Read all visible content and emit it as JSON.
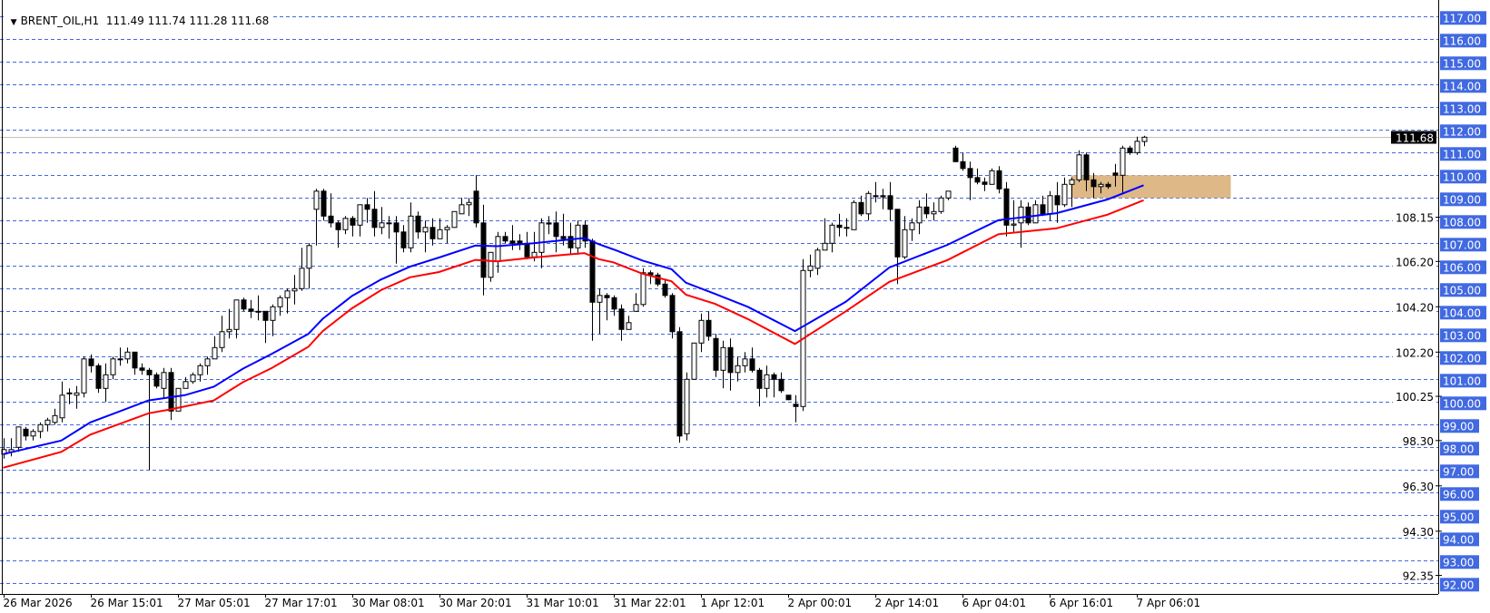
{
  "header": {
    "menu_icon": "triangle-down-icon",
    "symbol": "BRENT_OIL,H1",
    "ohlc": "111.49 111.74 111.28 111.68"
  },
  "chart_data": {
    "type": "candlestick",
    "symbol": "BRENT_OIL",
    "timeframe": "H1",
    "ylim": [
      92,
      117
    ],
    "grid": true,
    "grid_style": "dashed",
    "colors": {
      "grid": "#4169e1",
      "axis_label_bg": "#4169e1",
      "bull_body": "#ffffff",
      "bear_body": "#000000",
      "ma_fast": "#0000ff",
      "ma_slow": "#ff0000",
      "zone": "#deb887",
      "price_line": "#c0c0c0",
      "price_label_bg": "#000000"
    },
    "y_ticks": [
      "117.00",
      "116.00",
      "115.00",
      "114.00",
      "113.00",
      "112.00",
      "111.00",
      "110.00",
      "109.00",
      "108.00",
      "107.00",
      "106.00",
      "105.00",
      "104.00",
      "103.00",
      "102.00",
      "101.00",
      "100.00",
      "99.00",
      "98.00",
      "97.00",
      "96.00",
      "95.00",
      "94.00",
      "93.00",
      "92.00"
    ],
    "y_minor_ticks": [
      "108.15",
      "106.20",
      "104.20",
      "102.20",
      "100.25",
      "98.30",
      "96.30",
      "94.30",
      "92.35"
    ],
    "x_ticks": [
      "26 Mar 2026",
      "26 Mar 15:01",
      "27 Mar 05:01",
      "27 Mar 17:01",
      "30 Mar 08:01",
      "30 Mar 20:01",
      "31 Mar 10:01",
      "31 Mar 22:01",
      "1 Apr 12:01",
      "2 Apr 00:01",
      "2 Apr 14:01",
      "6 Apr 04:01",
      "6 Apr 16:01",
      "7 Apr 06:01"
    ],
    "x_tick_every_bars": 12,
    "current_price": "111.68",
    "zone": {
      "low": 109,
      "high": 110,
      "start_bar": 147,
      "end_bar": 169
    },
    "candles_ohlc": [
      [
        97.7,
        98.4,
        97.5,
        97.9
      ],
      [
        97.8,
        98.4,
        97.6,
        97.9
      ],
      [
        98.0,
        98.9,
        97.8,
        98.9
      ],
      [
        98.8,
        98.9,
        98.3,
        98.5
      ],
      [
        98.5,
        98.8,
        98.3,
        98.7
      ],
      [
        98.7,
        99.1,
        98.4,
        99.0
      ],
      [
        99.0,
        99.3,
        98.7,
        99.2
      ],
      [
        99.1,
        99.7,
        99.0,
        99.4
      ],
      [
        99.3,
        100.9,
        99.1,
        100.3
      ],
      [
        100.4,
        100.6,
        99.9,
        100.4
      ],
      [
        100.3,
        100.7,
        99.7,
        100.4
      ],
      [
        100.4,
        102.0,
        100.2,
        101.9
      ],
      [
        101.9,
        102.1,
        101.3,
        101.6
      ],
      [
        101.6,
        101.7,
        100.4,
        100.6
      ],
      [
        100.6,
        101.7,
        100.0,
        101.2
      ],
      [
        101.2,
        102.0,
        101.0,
        101.9
      ],
      [
        101.9,
        102.4,
        101.6,
        101.9
      ],
      [
        101.9,
        102.4,
        101.7,
        102.2
      ],
      [
        102.2,
        102.2,
        101.2,
        101.5
      ],
      [
        101.5,
        101.7,
        101.2,
        101.4
      ],
      [
        101.4,
        101.5,
        97.0,
        101.2
      ],
      [
        101.2,
        101.3,
        100.6,
        100.7
      ],
      [
        100.6,
        101.5,
        100.2,
        101.3
      ],
      [
        101.3,
        101.5,
        99.2,
        99.6
      ],
      [
        99.6,
        100.6,
        99.6,
        100.6
      ],
      [
        100.6,
        101.1,
        100.6,
        100.9
      ],
      [
        100.9,
        101.3,
        100.8,
        101.2
      ],
      [
        101.2,
        101.7,
        100.9,
        101.6
      ],
      [
        101.6,
        102.0,
        101.2,
        101.9
      ],
      [
        101.9,
        102.9,
        101.9,
        102.4
      ],
      [
        102.4,
        103.8,
        102.2,
        103.1
      ],
      [
        103.1,
        104.1,
        102.8,
        103.2
      ],
      [
        103.2,
        104.5,
        102.8,
        104.5
      ],
      [
        104.5,
        104.6,
        104.0,
        104.1
      ],
      [
        104.1,
        104.5,
        103.7,
        104.0
      ],
      [
        104.0,
        104.7,
        103.6,
        104.0
      ],
      [
        104.0,
        104.0,
        102.6,
        103.6
      ],
      [
        103.6,
        104.3,
        102.9,
        104.2
      ],
      [
        104.2,
        104.7,
        103.8,
        104.6
      ],
      [
        104.6,
        105.0,
        103.9,
        104.9
      ],
      [
        104.9,
        105.6,
        104.3,
        105.0
      ],
      [
        105.0,
        106.8,
        104.9,
        105.9
      ],
      [
        105.9,
        107.0,
        105.0,
        106.9
      ],
      [
        108.5,
        109.4,
        106.9,
        109.3
      ],
      [
        109.3,
        109.4,
        108.0,
        108.2
      ],
      [
        108.2,
        109.2,
        107.7,
        107.9
      ],
      [
        107.9,
        108.0,
        106.8,
        107.6
      ],
      [
        107.6,
        108.2,
        107.4,
        108.1
      ],
      [
        108.1,
        108.2,
        107.3,
        107.8
      ],
      [
        107.8,
        108.7,
        107.3,
        108.7
      ],
      [
        108.7,
        109.0,
        107.9,
        108.5
      ],
      [
        108.5,
        109.3,
        107.3,
        107.7
      ],
      [
        107.7,
        108.6,
        107.4,
        107.9
      ],
      [
        107.9,
        108.2,
        107.2,
        107.9
      ],
      [
        107.9,
        108.2,
        106.1,
        107.5
      ],
      [
        107.5,
        107.8,
        106.6,
        106.8
      ],
      [
        106.8,
        108.8,
        106.6,
        108.2
      ],
      [
        108.2,
        108.4,
        107.2,
        107.5
      ],
      [
        107.5,
        108.0,
        106.6,
        107.7
      ],
      [
        107.7,
        108.1,
        106.9,
        107.2
      ],
      [
        107.2,
        108.1,
        107.2,
        107.6
      ],
      [
        107.6,
        107.8,
        107.0,
        107.7
      ],
      [
        107.7,
        108.4,
        107.7,
        108.4
      ],
      [
        108.3,
        109.0,
        108.3,
        108.7
      ],
      [
        108.7,
        109.0,
        108.2,
        108.8
      ],
      [
        109.3,
        110.0,
        107.7,
        107.9
      ],
      [
        107.9,
        108.7,
        104.7,
        105.5
      ],
      [
        105.5,
        106.6,
        105.3,
        106.6
      ],
      [
        106.2,
        107.5,
        105.7,
        107.3
      ],
      [
        107.3,
        107.5,
        107.0,
        107.1
      ],
      [
        107.1,
        107.8,
        106.7,
        107.0
      ],
      [
        107.1,
        107.4,
        106.7,
        107.0
      ],
      [
        107.0,
        107.5,
        106.3,
        106.4
      ],
      [
        106.4,
        107.5,
        106.2,
        106.6
      ],
      [
        106.6,
        108.1,
        105.9,
        107.9
      ],
      [
        107.9,
        108.2,
        107.4,
        107.85
      ],
      [
        107.9,
        108.4,
        106.6,
        107.3
      ],
      [
        107.3,
        108.3,
        106.9,
        107.2
      ],
      [
        107.3,
        107.9,
        106.5,
        106.8
      ],
      [
        106.8,
        108.0,
        106.5,
        107.8
      ],
      [
        107.8,
        108.0,
        106.8,
        107.1
      ],
      [
        107.1,
        107.2,
        102.7,
        104.4
      ],
      [
        104.4,
        105.0,
        103.0,
        104.7
      ],
      [
        104.7,
        104.8,
        103.6,
        104.6
      ],
      [
        104.6,
        104.7,
        103.8,
        104.1
      ],
      [
        104.1,
        104.3,
        102.7,
        103.2
      ],
      [
        103.2,
        103.8,
        103.2,
        103.5
      ],
      [
        104.0,
        104.8,
        104.0,
        104.3
      ],
      [
        104.3,
        105.9,
        104.2,
        105.7
      ],
      [
        105.7,
        105.8,
        105.2,
        105.6
      ],
      [
        105.6,
        105.7,
        105.1,
        105.2
      ],
      [
        105.2,
        105.4,
        104.6,
        104.7
      ],
      [
        104.7,
        104.8,
        102.8,
        103.1
      ],
      [
        103.1,
        103.3,
        98.2,
        98.5
      ],
      [
        98.6,
        101.3,
        98.3,
        101.0
      ],
      [
        101.0,
        102.6,
        101.0,
        102.6
      ],
      [
        102.6,
        103.9,
        102.2,
        103.6
      ],
      [
        103.6,
        104.0,
        102.7,
        102.9
      ],
      [
        102.8,
        103.0,
        101.1,
        101.4
      ],
      [
        101.4,
        102.7,
        100.6,
        102.4
      ],
      [
        102.4,
        102.8,
        100.5,
        101.3
      ],
      [
        101.3,
        102.0,
        100.9,
        101.6
      ],
      [
        101.6,
        102.2,
        101.3,
        101.9
      ],
      [
        101.9,
        102.4,
        101.3,
        101.4
      ],
      [
        101.4,
        101.5,
        99.8,
        100.6
      ],
      [
        100.6,
        101.6,
        100.2,
        101.2
      ],
      [
        101.2,
        101.3,
        100.2,
        101.0
      ],
      [
        101.0,
        101.3,
        100.4,
        100.5
      ],
      [
        100.3,
        100.3,
        100.1,
        100.1
      ],
      [
        99.9,
        100.3,
        99.1,
        99.8
      ],
      [
        99.8,
        106.3,
        99.6,
        105.8
      ],
      [
        105.8,
        106.5,
        105.5,
        106.0
      ],
      [
        105.9,
        106.8,
        105.6,
        106.7
      ],
      [
        106.7,
        108.1,
        106.7,
        107.0
      ],
      [
        107.0,
        107.9,
        106.6,
        107.8
      ],
      [
        107.8,
        108.3,
        107.3,
        107.7
      ],
      [
        107.7,
        108.1,
        107.3,
        107.7
      ],
      [
        107.6,
        108.9,
        107.6,
        108.8
      ],
      [
        108.8,
        109.1,
        108.2,
        108.3
      ],
      [
        108.3,
        109.3,
        108.0,
        109.2
      ],
      [
        109.1,
        109.7,
        108.8,
        109.1
      ],
      [
        109.1,
        109.4,
        108.5,
        109.05
      ],
      [
        109.1,
        109.7,
        108.0,
        108.5
      ],
      [
        108.5,
        108.5,
        105.2,
        106.4
      ],
      [
        106.4,
        108.2,
        106.3,
        107.6
      ],
      [
        107.6,
        108.1,
        107.1,
        107.9
      ],
      [
        107.9,
        108.9,
        107.4,
        108.6
      ],
      [
        108.6,
        109.2,
        108.1,
        108.3
      ],
      [
        108.3,
        108.8,
        108.0,
        108.4
      ],
      [
        108.4,
        109.1,
        108.3,
        109.0
      ],
      [
        109.0,
        109.3,
        108.9,
        109.3
      ],
      [
        111.2,
        111.3,
        110.6,
        110.6
      ],
      [
        110.6,
        111.0,
        110.2,
        110.3
      ],
      [
        110.3,
        110.6,
        108.9,
        109.9
      ],
      [
        109.9,
        110.3,
        109.6,
        109.7
      ],
      [
        109.7,
        109.9,
        109.3,
        109.6
      ],
      [
        109.6,
        110.3,
        109.6,
        110.2
      ],
      [
        110.2,
        110.4,
        109.2,
        109.4
      ],
      [
        109.4,
        109.7,
        107.3,
        107.8
      ],
      [
        107.8,
        108.9,
        107.5,
        107.85
      ],
      [
        107.9,
        108.9,
        106.8,
        108.6
      ],
      [
        108.6,
        108.8,
        107.8,
        107.9
      ],
      [
        107.9,
        108.9,
        107.9,
        108.7
      ],
      [
        108.7,
        109.1,
        108.2,
        108.3
      ],
      [
        108.3,
        109.3,
        108.0,
        109.1
      ],
      [
        109.1,
        109.7,
        107.9,
        108.7
      ],
      [
        108.7,
        109.9,
        108.6,
        109.6
      ],
      [
        109.6,
        109.9,
        108.6,
        109.8
      ],
      [
        109.8,
        111.1,
        109.7,
        110.9
      ],
      [
        110.9,
        111.0,
        109.3,
        109.8
      ],
      [
        109.8,
        110.1,
        109.0,
        109.5
      ],
      [
        109.5,
        109.7,
        109.2,
        109.6
      ],
      [
        109.6,
        109.7,
        109.4,
        109.5
      ],
      [
        110.1,
        110.5,
        109.5,
        110.0
      ],
      [
        110.0,
        111.3,
        109.2,
        111.2
      ],
      [
        111.2,
        111.3,
        110.9,
        111.0
      ],
      [
        111.0,
        111.7,
        110.9,
        111.5
      ],
      [
        111.49,
        111.74,
        111.28,
        111.68
      ]
    ],
    "ma_fast": [
      [
        0,
        97.7
      ],
      [
        8,
        98.3
      ],
      [
        12,
        99.1
      ],
      [
        20,
        100.07
      ],
      [
        25,
        100.3
      ],
      [
        29,
        100.67
      ],
      [
        33,
        101.47
      ],
      [
        37,
        102.13
      ],
      [
        42,
        103.0
      ],
      [
        44,
        103.67
      ],
      [
        48,
        104.67
      ],
      [
        52,
        105.4
      ],
      [
        56,
        105.97
      ],
      [
        60,
        106.37
      ],
      [
        65,
        106.9
      ],
      [
        68,
        106.87
      ],
      [
        73,
        107.0
      ],
      [
        80,
        107.23
      ],
      [
        82,
        106.96
      ],
      [
        84,
        106.73
      ],
      [
        88,
        106.24
      ],
      [
        92,
        105.86
      ],
      [
        94,
        105.26
      ],
      [
        98,
        104.77
      ],
      [
        102.5,
        104.2
      ],
      [
        109,
        103.13
      ],
      [
        116,
        104.42
      ],
      [
        122,
        105.93
      ],
      [
        130,
        106.93
      ],
      [
        137,
        108.02
      ],
      [
        145,
        108.33
      ],
      [
        152,
        108.93
      ],
      [
        157,
        109.56
      ]
    ],
    "ma_slow": [
      [
        0,
        97.1
      ],
      [
        8,
        97.8
      ],
      [
        12,
        98.56
      ],
      [
        20,
        99.5
      ],
      [
        23,
        99.67
      ],
      [
        29,
        100.07
      ],
      [
        33,
        100.87
      ],
      [
        37,
        101.5
      ],
      [
        42,
        102.43
      ],
      [
        44,
        103.13
      ],
      [
        48,
        104.13
      ],
      [
        52,
        104.93
      ],
      [
        56,
        105.5
      ],
      [
        60,
        105.73
      ],
      [
        65,
        106.27
      ],
      [
        68,
        106.2
      ],
      [
        73,
        106.37
      ],
      [
        80,
        106.57
      ],
      [
        82,
        106.3
      ],
      [
        84,
        106.16
      ],
      [
        88,
        105.66
      ],
      [
        92,
        105.33
      ],
      [
        94,
        104.73
      ],
      [
        98,
        104.33
      ],
      [
        102.5,
        103.66
      ],
      [
        109,
        102.56
      ],
      [
        116,
        104.0
      ],
      [
        122,
        105.3
      ],
      [
        130,
        106.26
      ],
      [
        137,
        107.4
      ],
      [
        145,
        107.66
      ],
      [
        152,
        108.26
      ],
      [
        157,
        108.9
      ]
    ]
  }
}
